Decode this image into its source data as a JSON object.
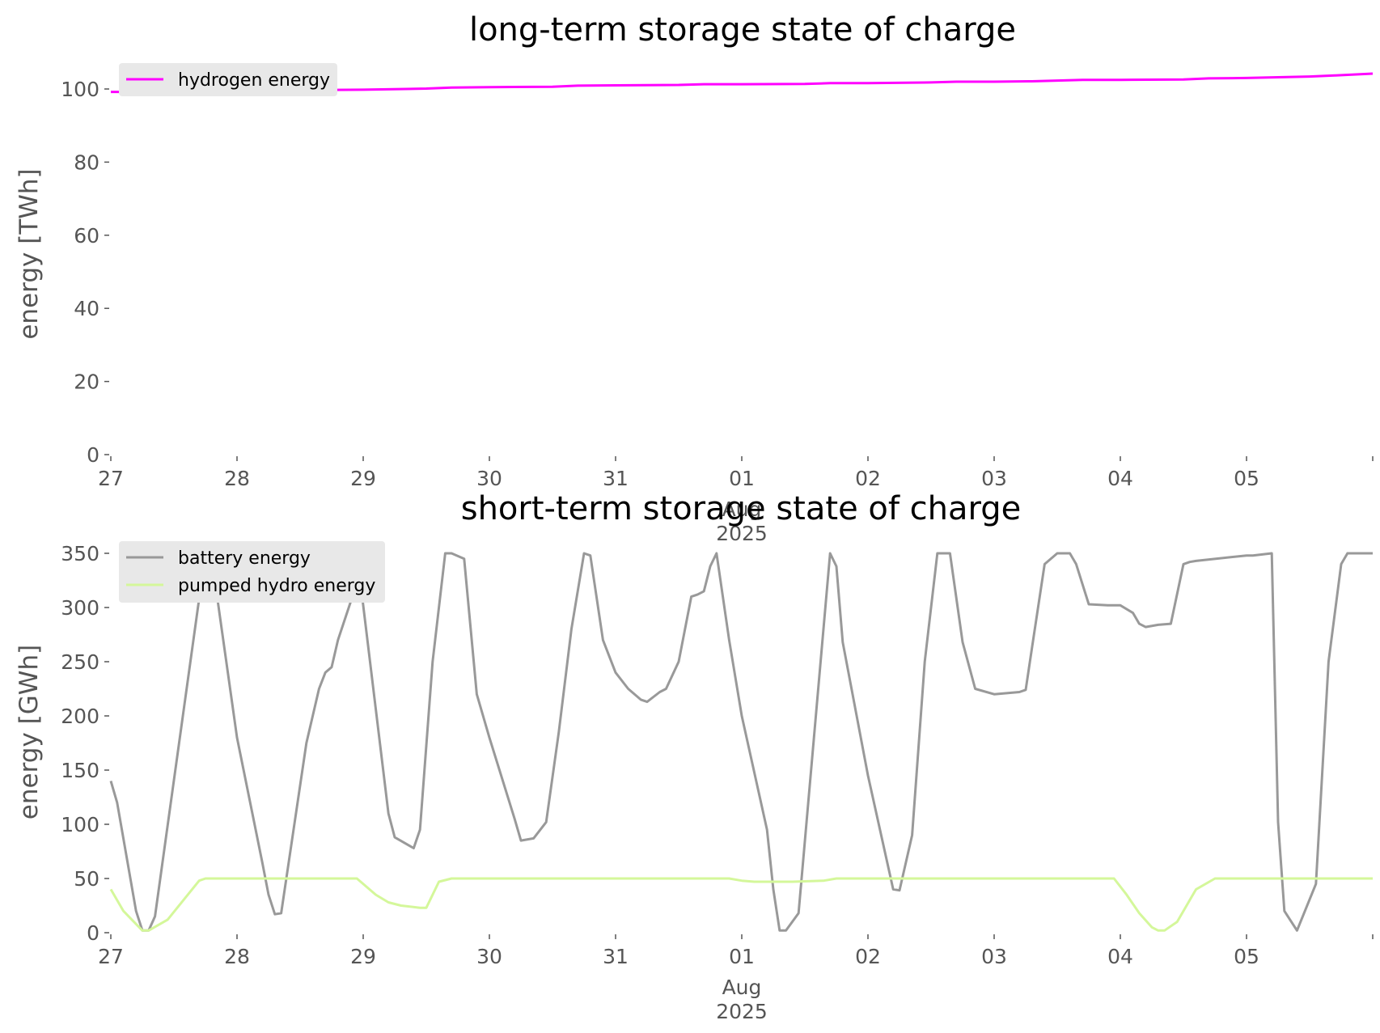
{
  "colors": {
    "hydrogen": "#ff00ff",
    "battery": "#999999",
    "pumped_hydro": "#d4f79a",
    "legend_bg": "#e8e8e8",
    "tick": "#555555"
  },
  "chart_data": [
    {
      "type": "line",
      "title": "long-term storage state of charge",
      "xlabel": "",
      "ylabel": "energy [TWh]",
      "x_range_days": [
        27,
        37
      ],
      "ylim": [
        0,
        105
      ],
      "yticks": [
        0,
        20,
        40,
        60,
        80,
        100
      ],
      "xticks": [
        "27",
        "28",
        "29",
        "30",
        "31",
        "01",
        "02",
        "03",
        "04",
        "05"
      ],
      "xtick_sublabels": [
        "Aug",
        "2025"
      ],
      "legend": "top-left",
      "grid": false,
      "series": [
        {
          "name": "hydrogen energy",
          "color": "#ff00ff",
          "x_day": [
            27,
            27.5,
            28,
            28.5,
            29,
            29.5,
            29.7,
            30,
            30.5,
            30.7,
            31,
            31.5,
            31.7,
            32,
            32.5,
            32.7,
            33,
            33.5,
            33.7,
            34,
            34.3,
            34.7,
            35,
            35.5,
            35.7,
            36,
            36.5,
            36.7,
            37
          ],
          "values": [
            99.2,
            99.2,
            99.5,
            99.7,
            99.8,
            100.1,
            100.4,
            100.5,
            100.6,
            100.9,
            101.0,
            101.1,
            101.3,
            101.3,
            101.4,
            101.6,
            101.6,
            101.8,
            102.0,
            102.0,
            102.1,
            102.5,
            102.5,
            102.6,
            102.9,
            103.0,
            103.4,
            103.7,
            104.2
          ]
        }
      ]
    },
    {
      "type": "line",
      "title": "short-term storage state of charge",
      "xlabel": "",
      "ylabel": "energy [GWh]",
      "x_range_days": [
        27,
        37
      ],
      "ylim": [
        0,
        350
      ],
      "yticks": [
        0,
        50,
        100,
        150,
        200,
        250,
        300,
        350
      ],
      "xticks": [
        "27",
        "28",
        "29",
        "30",
        "31",
        "01",
        "02",
        "03",
        "04",
        "05"
      ],
      "xtick_sublabels": [
        "Aug",
        "2025"
      ],
      "legend": "top-left",
      "grid": false,
      "series": [
        {
          "name": "battery energy",
          "color": "#999999",
          "x_day": [
            27.0,
            27.05,
            27.2,
            27.25,
            27.3,
            27.35,
            27.75,
            27.8,
            28.0,
            28.2,
            28.25,
            28.3,
            28.35,
            28.55,
            28.65,
            28.7,
            28.75,
            28.8,
            28.9,
            28.95,
            29.2,
            29.25,
            29.4,
            29.45,
            29.55,
            29.65,
            29.7,
            29.8,
            29.9,
            30.0,
            30.2,
            30.25,
            30.35,
            30.45,
            30.55,
            30.65,
            30.75,
            30.8,
            30.9,
            31.0,
            31.1,
            31.2,
            31.25,
            31.35,
            31.4,
            31.5,
            31.6,
            31.65,
            31.7,
            31.75,
            31.8,
            31.9,
            32.0,
            32.2,
            32.25,
            32.3,
            32.35,
            32.45,
            32.7,
            32.75,
            32.8,
            33.0,
            33.2,
            33.25,
            33.35,
            33.45,
            33.55,
            33.65,
            33.75,
            33.85,
            34.0,
            34.2,
            34.25,
            34.3,
            34.4,
            34.5,
            34.6,
            34.65,
            34.75,
            34.9,
            34.95,
            35.0,
            35.1,
            35.15,
            35.2,
            35.3,
            35.4,
            35.5,
            35.55,
            35.6,
            36.0,
            36.05,
            36.2,
            36.25,
            36.3,
            36.4,
            36.55,
            36.65,
            36.75,
            36.8,
            37.0
          ],
          "values": [
            140,
            120,
            20,
            2,
            2,
            15,
            350,
            345,
            180,
            65,
            35,
            17,
            18,
            175,
            225,
            240,
            245,
            270,
            305,
            350,
            110,
            88,
            78,
            95,
            250,
            350,
            350,
            345,
            220,
            180,
            105,
            85,
            87,
            102,
            185,
            280,
            350,
            348,
            270,
            240,
            225,
            215,
            213,
            222,
            225,
            250,
            310,
            312,
            315,
            338,
            350,
            270,
            200,
            95,
            40,
            2,
            2,
            18,
            350,
            338,
            268,
            145,
            40,
            39,
            90,
            250,
            350,
            350,
            268,
            225,
            220,
            222,
            224,
            263,
            340,
            350,
            350,
            340,
            303,
            302,
            302,
            302,
            295,
            285,
            282,
            284,
            285,
            340,
            342,
            343,
            348,
            348,
            350,
            102,
            20,
            2,
            45,
            250,
            340,
            350,
            350
          ]
        },
        {
          "name": "pumped hydro energy",
          "color": "#d4f79a",
          "x_day": [
            27.0,
            27.1,
            27.2,
            27.25,
            27.3,
            27.45,
            27.7,
            27.75,
            28.95,
            29.1,
            29.2,
            29.3,
            29.45,
            29.5,
            29.6,
            29.7,
            31.9,
            32.0,
            32.1,
            32.4,
            32.65,
            32.75,
            34.95,
            35.05,
            35.15,
            35.25,
            35.3,
            35.35,
            35.45,
            35.55,
            35.6,
            35.75,
            37.0
          ],
          "values": [
            40,
            20,
            8,
            2,
            2,
            12,
            48,
            50,
            50,
            35,
            28,
            25,
            23,
            23,
            47,
            50,
            50,
            48,
            47,
            47,
            48,
            50,
            50,
            35,
            18,
            5,
            2,
            2,
            10,
            30,
            40,
            50,
            50
          ]
        }
      ]
    }
  ]
}
